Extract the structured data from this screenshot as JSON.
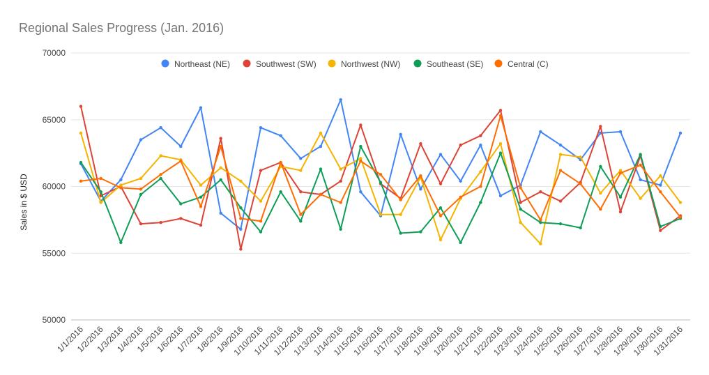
{
  "chart_data": {
    "type": "line",
    "title": "Regional Sales Progress (Jan. 2016)",
    "xlabel": "",
    "ylabel": "Sales in $ USD",
    "ylim": [
      50000,
      70000
    ],
    "yticks": [
      50000,
      55000,
      60000,
      65000,
      70000
    ],
    "grid": true,
    "legend_position": "top",
    "categories": [
      "1/1/2016",
      "1/2/2016",
      "1/3/2016",
      "1/4/2016",
      "1/5/2016",
      "1/6/2016",
      "1/7/2016",
      "1/8/2016",
      "1/9/2016",
      "1/10/2016",
      "1/11/2016",
      "1/12/2016",
      "1/13/2016",
      "1/14/2016",
      "1/15/2016",
      "1/16/2016",
      "1/17/2016",
      "1/18/2016",
      "1/19/2016",
      "1/20/2016",
      "1/21/2016",
      "1/22/2016",
      "1/23/2016",
      "1/24/2016",
      "1/25/2016",
      "1/26/2016",
      "1/27/2016",
      "1/28/2016",
      "1/29/2016",
      "1/30/2016",
      "1/31/2016"
    ],
    "series": [
      {
        "name": "Northeast (NE)",
        "color": "#4285f4",
        "values": [
          61700,
          58900,
          60500,
          63500,
          64400,
          63000,
          65900,
          58000,
          56800,
          64400,
          63800,
          62100,
          63000,
          66500,
          59600,
          57800,
          63900,
          59800,
          62400,
          60400,
          63100,
          59300,
          60100,
          64100,
          63100,
          62000,
          64000,
          64100,
          60500,
          60100,
          64000
        ]
      },
      {
        "name": "Southwest (SW)",
        "color": "#db4437",
        "values": [
          66000,
          59300,
          60000,
          57200,
          57300,
          57600,
          57100,
          63600,
          55300,
          61200,
          61800,
          59600,
          59400,
          60400,
          64600,
          60200,
          59100,
          63200,
          60200,
          63100,
          63800,
          65700,
          58800,
          59600,
          58900,
          60300,
          64500,
          58100,
          62300,
          56700,
          57800
        ]
      },
      {
        "name": "Northwest (NW)",
        "color": "#f4b400",
        "values": [
          64000,
          58800,
          60100,
          60600,
          62300,
          62000,
          60100,
          61400,
          60400,
          58900,
          61500,
          61200,
          64000,
          61300,
          62100,
          57900,
          57900,
          60700,
          56000,
          59100,
          61100,
          63200,
          57300,
          55700,
          62400,
          62200,
          59500,
          61200,
          59100,
          60800,
          58800
        ]
      },
      {
        "name": "Southeast (SE)",
        "color": "#0f9d58",
        "values": [
          61800,
          59600,
          55800,
          59400,
          60600,
          58700,
          59200,
          60500,
          58400,
          56600,
          59600,
          57400,
          61300,
          56800,
          63000,
          60300,
          56500,
          56600,
          58400,
          55800,
          58800,
          62500,
          58300,
          57300,
          57200,
          56900,
          61500,
          59200,
          62400,
          57000,
          57600
        ]
      },
      {
        "name": "Central (C)",
        "color": "#ff6d00",
        "values": [
          60400,
          60600,
          59900,
          59800,
          60900,
          61900,
          58500,
          63000,
          57600,
          57400,
          61800,
          57900,
          59400,
          58800,
          61900,
          60900,
          59000,
          60800,
          57800,
          59200,
          60000,
          65300,
          59900,
          57500,
          61200,
          60200,
          58300,
          61000,
          61600,
          59600,
          57700
        ]
      }
    ]
  }
}
